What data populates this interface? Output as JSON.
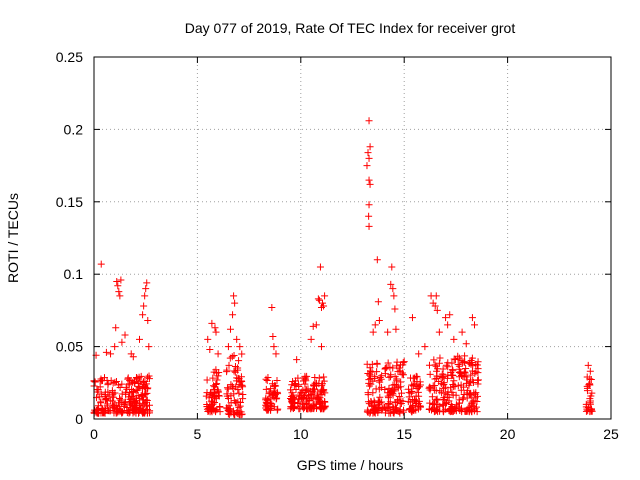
{
  "chart_data": {
    "type": "scatter",
    "title": "Day 077 of 2019, Rate Of TEC Index for receiver grot",
    "xlabel": "GPS time / hours",
    "ylabel": "ROTI / TECUs",
    "xlim": [
      0,
      25
    ],
    "ylim": [
      0,
      0.25
    ],
    "x_ticks": [
      "0",
      "5",
      "10",
      "15",
      "20",
      "25"
    ],
    "y_ticks": [
      "0",
      "0.05",
      "0.1",
      "0.15",
      "0.2",
      "0.25"
    ],
    "x_tick_values": [
      0,
      5,
      10,
      15,
      20,
      25
    ],
    "y_tick_values": [
      0,
      0.05,
      0.1,
      0.15,
      0.2,
      0.25
    ],
    "grid": true,
    "marker": "plus",
    "series": [
      {
        "color": "#ff0000",
        "points": [
          [
            0.1,
            0.044
          ],
          [
            0.35,
            0.107
          ],
          [
            0.6,
            0.046
          ],
          [
            0.8,
            0.045
          ],
          [
            1.0,
            0.05
          ],
          [
            1.05,
            0.063
          ],
          [
            1.1,
            0.095
          ],
          [
            1.15,
            0.092
          ],
          [
            1.2,
            0.088
          ],
          [
            1.25,
            0.085
          ],
          [
            1.3,
            0.096
          ],
          [
            1.35,
            0.053
          ],
          [
            1.5,
            0.058
          ],
          [
            1.8,
            0.045
          ],
          [
            1.9,
            0.043
          ],
          [
            2.2,
            0.055
          ],
          [
            2.35,
            0.072
          ],
          [
            2.4,
            0.078
          ],
          [
            2.45,
            0.085
          ],
          [
            2.5,
            0.09
          ],
          [
            2.55,
            0.094
          ],
          [
            2.6,
            0.068
          ],
          [
            2.65,
            0.05
          ],
          [
            5.5,
            0.055
          ],
          [
            5.6,
            0.048
          ],
          [
            5.7,
            0.066
          ],
          [
            5.85,
            0.063
          ],
          [
            5.9,
            0.06
          ],
          [
            6.0,
            0.045
          ],
          [
            6.5,
            0.05
          ],
          [
            6.6,
            0.062
          ],
          [
            6.7,
            0.072
          ],
          [
            6.75,
            0.085
          ],
          [
            6.8,
            0.08
          ],
          [
            6.9,
            0.055
          ],
          [
            7.05,
            0.05
          ],
          [
            8.6,
            0.077
          ],
          [
            8.65,
            0.057
          ],
          [
            8.7,
            0.05
          ],
          [
            8.8,
            0.045
          ],
          [
            9.8,
            0.041
          ],
          [
            10.5,
            0.055
          ],
          [
            10.6,
            0.064
          ],
          [
            10.75,
            0.065
          ],
          [
            10.85,
            0.083
          ],
          [
            10.9,
            0.082
          ],
          [
            10.95,
            0.105
          ],
          [
            11.0,
            0.077
          ],
          [
            11.05,
            0.08
          ],
          [
            11.1,
            0.078
          ],
          [
            11.15,
            0.085
          ],
          [
            11.0,
            0.05
          ],
          [
            13.3,
            0.206
          ],
          [
            13.35,
            0.188
          ],
          [
            13.25,
            0.184
          ],
          [
            13.3,
            0.18
          ],
          [
            13.2,
            0.175
          ],
          [
            13.35,
            0.162
          ],
          [
            13.3,
            0.165
          ],
          [
            13.3,
            0.148
          ],
          [
            13.28,
            0.14
          ],
          [
            13.3,
            0.133
          ],
          [
            13.5,
            0.06
          ],
          [
            13.6,
            0.065
          ],
          [
            13.7,
            0.11
          ],
          [
            13.75,
            0.081
          ],
          [
            13.8,
            0.068
          ],
          [
            14.2,
            0.06
          ],
          [
            14.35,
            0.093
          ],
          [
            14.4,
            0.105
          ],
          [
            14.45,
            0.09
          ],
          [
            14.5,
            0.085
          ],
          [
            14.55,
            0.076
          ],
          [
            14.6,
            0.062
          ],
          [
            15.4,
            0.07
          ],
          [
            15.7,
            0.045
          ],
          [
            16.0,
            0.05
          ],
          [
            16.3,
            0.085
          ],
          [
            16.4,
            0.08
          ],
          [
            16.5,
            0.078
          ],
          [
            16.55,
            0.085
          ],
          [
            16.6,
            0.075
          ],
          [
            16.7,
            0.06
          ],
          [
            17.0,
            0.07
          ],
          [
            17.1,
            0.065
          ],
          [
            17.2,
            0.072
          ],
          [
            17.4,
            0.055
          ],
          [
            17.8,
            0.06
          ],
          [
            18.0,
            0.052
          ],
          [
            18.3,
            0.07
          ],
          [
            18.4,
            0.065
          ],
          [
            23.9,
            0.037
          ],
          [
            24.0,
            0.033
          ],
          [
            23.85,
            0.029
          ]
        ]
      }
    ],
    "bands": [
      {
        "x": [
          0.0,
          2.7
        ],
        "y": [
          0.004,
          0.03
        ]
      },
      {
        "x": [
          5.4,
          6.1
        ],
        "y": [
          0.005,
          0.035
        ]
      },
      {
        "x": [
          6.4,
          7.2
        ],
        "y": [
          0.003,
          0.045
        ]
      },
      {
        "x": [
          8.3,
          8.9
        ],
        "y": [
          0.006,
          0.03
        ]
      },
      {
        "x": [
          9.5,
          11.2
        ],
        "y": [
          0.007,
          0.03
        ]
      },
      {
        "x": [
          13.2,
          15.0
        ],
        "y": [
          0.004,
          0.04
        ]
      },
      {
        "x": [
          15.2,
          15.8
        ],
        "y": [
          0.005,
          0.03
        ]
      },
      {
        "x": [
          16.2,
          18.6
        ],
        "y": [
          0.005,
          0.045
        ]
      },
      {
        "x": [
          23.8,
          24.1
        ],
        "y": [
          0.005,
          0.03
        ]
      }
    ]
  }
}
